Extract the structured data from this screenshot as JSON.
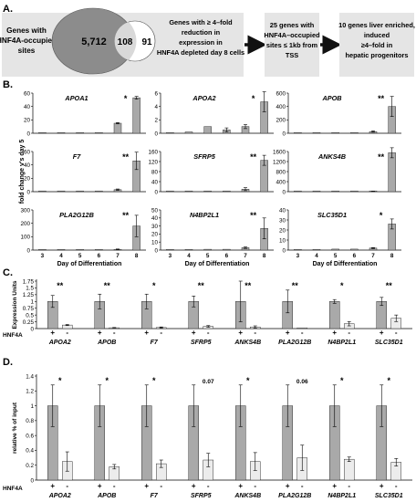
{
  "panelA": {
    "letter": "A.",
    "box1": [
      "Genes with",
      "HNF4A-occupied",
      "sites"
    ],
    "venn": {
      "left": "5,712",
      "overlap": "108",
      "right": "91"
    },
    "box2": [
      "Genes with ≥ 4–fold",
      "reduction in",
      "expression in",
      "HNF4A depleted day 8 cells"
    ],
    "box3": [
      "25 genes with",
      "HNF4A–occupied",
      "sites ≤ 1kb from",
      "TSS"
    ],
    "box4": [
      "10 genes liver enriched,",
      "induced",
      "≥4–fold in",
      "hepatic progenitors"
    ],
    "colors": {
      "box": "#e5e5e5",
      "venn_big": "#8c8c8c",
      "arrow": "#111111"
    }
  },
  "panelB": {
    "letter": "B.",
    "ylabel": "fold change v's day 5",
    "xlabel": "Day of Differentiation",
    "days": [
      "3",
      "4",
      "5",
      "6",
      "7",
      "8"
    ],
    "charts": [
      {
        "gene": "APOA1",
        "ticks": [
          "0",
          "20",
          "40",
          "60"
        ],
        "ymax": 60,
        "values": [
          0.3,
          0.3,
          1,
          1,
          15,
          53
        ],
        "err": [
          0,
          0,
          0,
          0,
          1,
          2
        ],
        "sig": "*"
      },
      {
        "gene": "APOA2",
        "ticks": [
          "0",
          "2",
          "4",
          "6"
        ],
        "ymax": 6,
        "values": [
          0.05,
          0.2,
          1,
          0.5,
          1,
          4.7
        ],
        "err": [
          0,
          0,
          0,
          0.3,
          0.3,
          1.5
        ],
        "sig": "*"
      },
      {
        "gene": "APOB",
        "ticks": [
          "0",
          "200",
          "400",
          "600"
        ],
        "ymax": 600,
        "values": [
          0.3,
          0.3,
          1,
          1,
          25,
          400
        ],
        "err": [
          0,
          0,
          0,
          0,
          10,
          150
        ],
        "sig": "**"
      },
      {
        "gene": "F7",
        "ticks": [
          "0",
          "20",
          "40",
          "60"
        ],
        "ymax": 60,
        "values": [
          0.3,
          0.3,
          1,
          1,
          3,
          46
        ],
        "err": [
          0,
          0,
          0,
          0,
          1,
          13
        ],
        "sig": "**"
      },
      {
        "gene": "SFRP5",
        "ticks": [
          "0",
          "40",
          "80",
          "120",
          "160"
        ],
        "ymax": 160,
        "values": [
          0.3,
          0.3,
          1,
          1,
          10,
          125
        ],
        "err": [
          0,
          0,
          0,
          0,
          6,
          20
        ],
        "sig": "**"
      },
      {
        "gene": "ANKS4B",
        "ticks": [
          "0",
          "400",
          "800",
          "1200",
          "1600"
        ],
        "ymax": 1600,
        "values": [
          0.3,
          0.3,
          1,
          1,
          10,
          1550
        ],
        "err": [
          0,
          0,
          0,
          0,
          5,
          200
        ],
        "sig": "**"
      },
      {
        "gene": "PLA2G12B",
        "ticks": [
          "0",
          "100",
          "200",
          "300"
        ],
        "ymax": 300,
        "values": [
          0.3,
          0.3,
          1,
          1,
          5,
          180
        ],
        "err": [
          0,
          0,
          0,
          0,
          3,
          80
        ],
        "sig": "**"
      },
      {
        "gene": "N4BP2L1",
        "ticks": [
          "0",
          "10",
          "20",
          "30",
          "40",
          "50"
        ],
        "ymax": 50,
        "values": [
          0.3,
          0.3,
          1,
          1,
          3,
          27
        ],
        "err": [
          0,
          0,
          0,
          0,
          1,
          13
        ],
        "sig": "**"
      },
      {
        "gene": "SLC35D1",
        "ticks": [
          "0",
          "10",
          "20",
          "30",
          "40"
        ],
        "ymax": 40,
        "values": [
          0.3,
          0.3,
          1,
          1,
          2,
          26
        ],
        "err": [
          0,
          0,
          0,
          0,
          0.5,
          5
        ],
        "sig": "*"
      }
    ]
  },
  "panelC": {
    "letter": "C.",
    "ylabel": "Expression Units",
    "ticks": [
      "0",
      "0.25",
      "0.5",
      "0.75",
      "1",
      "1.25",
      "1.5",
      "1.75"
    ],
    "ymax": 1.75,
    "hnf_label": "HNF4A",
    "plus": "+",
    "minus": "-",
    "groups": [
      {
        "gene": "APOA2",
        "plus": 1.0,
        "plus_err": 0.22,
        "minus": 0.13,
        "minus_err": 0.02,
        "sig": "**"
      },
      {
        "gene": "APOB",
        "plus": 1.0,
        "plus_err": 0.27,
        "minus": 0.03,
        "minus_err": 0.01,
        "sig": "**"
      },
      {
        "gene": "F7",
        "plus": 1.0,
        "plus_err": 0.27,
        "minus": 0.04,
        "minus_err": 0.02,
        "sig": "*"
      },
      {
        "gene": "SFRP5",
        "plus": 1.0,
        "plus_err": 0.2,
        "minus": 0.08,
        "minus_err": 0.03,
        "sig": "**"
      },
      {
        "gene": "ANKS4B",
        "plus": 1.0,
        "plus_err": 0.75,
        "minus": 0.06,
        "minus_err": 0.04,
        "sig": "**"
      },
      {
        "gene": "PLA2G12B",
        "plus": 1.0,
        "plus_err": 0.42,
        "minus": 0.0,
        "minus_err": 0.0,
        "sig": "**"
      },
      {
        "gene": "N4BP2L1",
        "plus": 1.0,
        "plus_err": 0.07,
        "minus": 0.18,
        "minus_err": 0.08,
        "sig": "*"
      },
      {
        "gene": "SLC35D1",
        "plus": 1.0,
        "plus_err": 0.15,
        "minus": 0.38,
        "minus_err": 0.12,
        "sig": "**"
      }
    ]
  },
  "panelD": {
    "letter": "D.",
    "ylabel": "relative % of input",
    "ticks": [
      "0",
      "0.2",
      "0.4",
      "0.6",
      "0.8",
      "1",
      "1.2",
      "1.4"
    ],
    "ymax": 1.4,
    "hnf_label": "HNF4A",
    "plus": "+",
    "minus": "-",
    "groups": [
      {
        "gene": "APOA2",
        "plus": 1.0,
        "plus_err": 0.28,
        "minus": 0.25,
        "minus_err": 0.13,
        "sig": "*"
      },
      {
        "gene": "APOB",
        "plus": 1.0,
        "plus_err": 0.28,
        "minus": 0.18,
        "minus_err": 0.03,
        "sig": "*"
      },
      {
        "gene": "F7",
        "plus": 1.0,
        "plus_err": 0.28,
        "minus": 0.22,
        "minus_err": 0.05,
        "sig": "*"
      },
      {
        "gene": "SFRP5",
        "plus": 1.0,
        "plus_err": 0.28,
        "minus": 0.27,
        "minus_err": 0.09,
        "sig": "0.07"
      },
      {
        "gene": "ANKS4B",
        "plus": 1.0,
        "plus_err": 0.28,
        "minus": 0.25,
        "minus_err": 0.12,
        "sig": "*"
      },
      {
        "gene": "PLA2G12B",
        "plus": 1.0,
        "plus_err": 0.28,
        "minus": 0.3,
        "minus_err": 0.17,
        "sig": "0.06"
      },
      {
        "gene": "N4BP2L1",
        "plus": 1.0,
        "plus_err": 0.28,
        "minus": 0.28,
        "minus_err": 0.03,
        "sig": "*"
      },
      {
        "gene": "SLC35D1",
        "plus": 1.0,
        "plus_err": 0.28,
        "minus": 0.24,
        "minus_err": 0.05,
        "sig": "*"
      }
    ]
  },
  "chart_data": [
    {
      "type": "bar",
      "panel": "B",
      "series_source": "panelB.charts"
    },
    {
      "type": "bar",
      "panel": "C",
      "series_source": "panelC.groups"
    },
    {
      "type": "bar",
      "panel": "D",
      "series_source": "panelD.groups"
    }
  ]
}
